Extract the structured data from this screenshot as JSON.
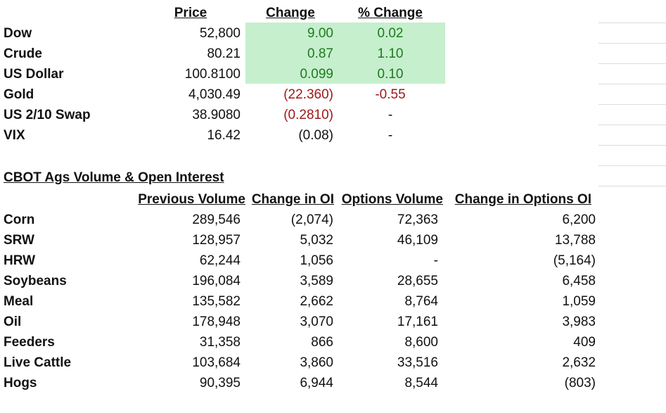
{
  "market": {
    "headers": {
      "price": "Price",
      "change": "Change",
      "pct": "% Change"
    },
    "rows": [
      {
        "name": "Dow",
        "price": "52,800",
        "change": "9.00",
        "pct": "0.02",
        "tone": "up"
      },
      {
        "name": "Crude",
        "price": "80.21",
        "change": "0.87",
        "pct": "1.10",
        "tone": "up"
      },
      {
        "name": "US Dollar",
        "price": "100.8100",
        "change": "0.099",
        "pct": "0.10",
        "tone": "up"
      },
      {
        "name": "Gold",
        "price": "4,030.49",
        "change": "(22.360)",
        "pct": "-0.55",
        "tone": "down"
      },
      {
        "name": "US 2/10 Swap",
        "price": "38.9080",
        "change": "(0.2810)",
        "pct": "-",
        "tone": "down"
      },
      {
        "name": "VIX",
        "price": "16.42",
        "change": "(0.08)",
        "pct": "-",
        "tone": "flat"
      }
    ],
    "colors": {
      "up_bg": "#c6efce",
      "up_text": "#1e7a1e",
      "down_text": "#a01818"
    }
  },
  "cbot": {
    "title": "CBOT Ags Volume & Open Interest",
    "headers": {
      "prev_volume": "Previous Volume",
      "change_oi": "Change in OI",
      "options_volume": "Options Volume",
      "change_options_oi": "Change in Options OI"
    },
    "rows": [
      {
        "name": "Corn",
        "prev_volume": "289,546",
        "change_oi": "(2,074)",
        "options_volume": "72,363",
        "change_options_oi": "6,200"
      },
      {
        "name": "SRW",
        "prev_volume": "128,957",
        "change_oi": "5,032",
        "options_volume": "46,109",
        "change_options_oi": "13,788"
      },
      {
        "name": "HRW",
        "prev_volume": "62,244",
        "change_oi": "1,056",
        "options_volume": "-",
        "change_options_oi": "(5,164)"
      },
      {
        "name": "Soybeans",
        "prev_volume": "196,084",
        "change_oi": "3,589",
        "options_volume": "28,655",
        "change_options_oi": "6,458"
      },
      {
        "name": "Meal",
        "prev_volume": "135,582",
        "change_oi": "2,662",
        "options_volume": "8,764",
        "change_options_oi": "1,059"
      },
      {
        "name": "Oil",
        "prev_volume": "178,948",
        "change_oi": "3,070",
        "options_volume": "17,161",
        "change_options_oi": "3,983"
      },
      {
        "name": "Feeders",
        "prev_volume": "31,358",
        "change_oi": "866",
        "options_volume": "8,600",
        "change_options_oi": "409"
      },
      {
        "name": "Live Cattle",
        "prev_volume": "103,684",
        "change_oi": "3,860",
        "options_volume": "33,516",
        "change_options_oi": "2,632"
      },
      {
        "name": "Hogs",
        "prev_volume": "90,395",
        "change_oi": "6,944",
        "options_volume": "8,544",
        "change_options_oi": "(803)"
      }
    ]
  }
}
